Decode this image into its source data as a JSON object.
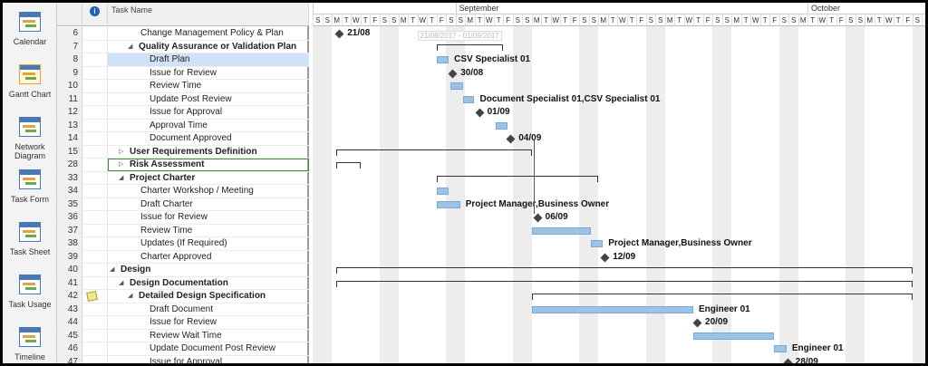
{
  "views": [
    {
      "label": "Calendar"
    },
    {
      "label": "Gantt Chart",
      "active": true
    },
    {
      "label": "Network Diagram"
    },
    {
      "label": "Task Form"
    },
    {
      "label": "Task Sheet"
    },
    {
      "label": "Task Usage"
    },
    {
      "label": "Timeline"
    }
  ],
  "table": {
    "header_task_name": "Task Name",
    "header_info": "i",
    "rows": [
      {
        "id": "6",
        "name": "Change Management Policy & Plan",
        "level": 2,
        "summary": false
      },
      {
        "id": "7",
        "name": "Quality Assurance or Validation Plan",
        "level": 2,
        "summary": true,
        "expanded": true
      },
      {
        "id": "8",
        "name": "Draft Plan",
        "level": 3,
        "summary": false,
        "selected": true
      },
      {
        "id": "9",
        "name": "Issue for Review",
        "level": 3,
        "summary": false
      },
      {
        "id": "10",
        "name": "Review Time",
        "level": 3,
        "summary": false
      },
      {
        "id": "11",
        "name": "Update Post Review",
        "level": 3,
        "summary": false
      },
      {
        "id": "12",
        "name": "Issue for Approval",
        "level": 3,
        "summary": false
      },
      {
        "id": "13",
        "name": "Approval Time",
        "level": 3,
        "summary": false
      },
      {
        "id": "14",
        "name": "Document Approved",
        "level": 3,
        "summary": false
      },
      {
        "id": "15",
        "name": "User Requirements Definition",
        "level": 1,
        "summary": true,
        "expanded": false
      },
      {
        "id": "28",
        "name": "Risk Assessment",
        "level": 1,
        "summary": true,
        "expanded": false,
        "outlined": true
      },
      {
        "id": "33",
        "name": "Project Charter",
        "level": 1,
        "summary": true,
        "expanded": true
      },
      {
        "id": "34",
        "name": "Charter Workshop / Meeting",
        "level": 2,
        "summary": false
      },
      {
        "id": "35",
        "name": "Draft Charter",
        "level": 2,
        "summary": false
      },
      {
        "id": "36",
        "name": "Issue for Review",
        "level": 2,
        "summary": false
      },
      {
        "id": "37",
        "name": "Review Time",
        "level": 2,
        "summary": false
      },
      {
        "id": "38",
        "name": "Updates (If Required)",
        "level": 2,
        "summary": false
      },
      {
        "id": "39",
        "name": "Charter Approved",
        "level": 2,
        "summary": false
      },
      {
        "id": "40",
        "name": "Design",
        "level": 0,
        "summary": true,
        "expanded": true
      },
      {
        "id": "41",
        "name": "Design Documentation",
        "level": 1,
        "summary": true,
        "expanded": true
      },
      {
        "id": "42",
        "name": "Detailed Design Specification",
        "level": 2,
        "summary": true,
        "expanded": true,
        "note": true
      },
      {
        "id": "43",
        "name": "Draft Document",
        "level": 3,
        "summary": false
      },
      {
        "id": "44",
        "name": "Issue for Review",
        "level": 3,
        "summary": false
      },
      {
        "id": "45",
        "name": "Review Wait Time",
        "level": 3,
        "summary": false
      },
      {
        "id": "46",
        "name": "Update Document Post Review",
        "level": 3,
        "summary": false
      },
      {
        "id": "47",
        "name": "Issue for Approval",
        "level": 3,
        "summary": false
      }
    ]
  },
  "timescale": {
    "months": [
      {
        "label": "",
        "start_day": 0,
        "days": 15
      },
      {
        "label": "September",
        "start_day": 15,
        "days": 37
      },
      {
        "label": "October",
        "start_day": 52,
        "days": 16
      }
    ],
    "day_letters": [
      "S",
      "S",
      "M",
      "T",
      "W",
      "T",
      "F",
      "S",
      "S",
      "M",
      "T",
      "W",
      "T",
      "F",
      "S",
      "S",
      "M",
      "T",
      "W",
      "T",
      "F",
      "S",
      "S",
      "M",
      "T",
      "W",
      "T",
      "F",
      "S",
      "S",
      "M",
      "T",
      "W",
      "T",
      "F",
      "S",
      "S",
      "M",
      "T",
      "W",
      "T",
      "F",
      "S",
      "S",
      "M",
      "T",
      "W",
      "T",
      "F",
      "S",
      "S",
      "M",
      "T",
      "W",
      "T",
      "F",
      "S",
      "S",
      "M",
      "T",
      "W",
      "T",
      "F",
      "S",
      "S",
      "M",
      "T",
      "W"
    ]
  },
  "gantt": {
    "tooltip_text": "21/08/2017 - 01/09/2017",
    "items": [
      {
        "row": 0,
        "type": "milestone",
        "day": 2.5,
        "label": "21/08"
      },
      {
        "row": 1,
        "type": "summary",
        "start": 13,
        "end": 20
      },
      {
        "row": 2,
        "type": "bar",
        "start": 13,
        "end": 14.3,
        "label": "CSV Specialist 01"
      },
      {
        "row": 3,
        "type": "milestone",
        "day": 14.4,
        "label": "30/08"
      },
      {
        "row": 4,
        "type": "bar",
        "start": 14.5,
        "end": 15.8
      },
      {
        "row": 5,
        "type": "bar",
        "start": 15.8,
        "end": 17,
        "label": "Document Specialist 01,CSV Specialist 01"
      },
      {
        "row": 6,
        "type": "milestone",
        "day": 17.2,
        "label": "01/09"
      },
      {
        "row": 7,
        "type": "bar",
        "start": 19.2,
        "end": 20.5
      },
      {
        "row": 8,
        "type": "milestone",
        "day": 20.5,
        "label": "04/09"
      },
      {
        "row": 9,
        "type": "summary",
        "start": 2.5,
        "end": 23
      },
      {
        "row": 10,
        "type": "summary",
        "start": 2.5,
        "end": 5
      },
      {
        "row": 11,
        "type": "summary",
        "start": 13,
        "end": 30
      },
      {
        "row": 12,
        "type": "bar",
        "start": 13,
        "end": 14.3
      },
      {
        "row": 13,
        "type": "bar",
        "start": 13,
        "end": 15.5,
        "label": "Project Manager,Business Owner"
      },
      {
        "row": 14,
        "type": "milestone",
        "day": 23.3,
        "label": "06/09"
      },
      {
        "row": 15,
        "type": "bar",
        "start": 23,
        "end": 29.2
      },
      {
        "row": 16,
        "type": "bar",
        "start": 29.2,
        "end": 30.5,
        "label": "Project Manager,Business Owner"
      },
      {
        "row": 17,
        "type": "milestone",
        "day": 30.4,
        "label": "12/09"
      },
      {
        "row": 18,
        "type": "summary",
        "start": 2.5,
        "end": 63
      },
      {
        "row": 19,
        "type": "summary",
        "start": 2.5,
        "end": 63
      },
      {
        "row": 20,
        "type": "summary",
        "start": 23,
        "end": 63
      },
      {
        "row": 21,
        "type": "bar",
        "start": 23,
        "end": 40,
        "label": "Engineer 01"
      },
      {
        "row": 22,
        "type": "milestone",
        "day": 40.1,
        "label": "20/09"
      },
      {
        "row": 23,
        "type": "bar",
        "start": 40,
        "end": 48.5
      },
      {
        "row": 24,
        "type": "bar",
        "start": 48.5,
        "end": 49.8,
        "label": "Engineer 01"
      },
      {
        "row": 25,
        "type": "milestone",
        "day": 49.6,
        "label": "28/09"
      }
    ]
  }
}
